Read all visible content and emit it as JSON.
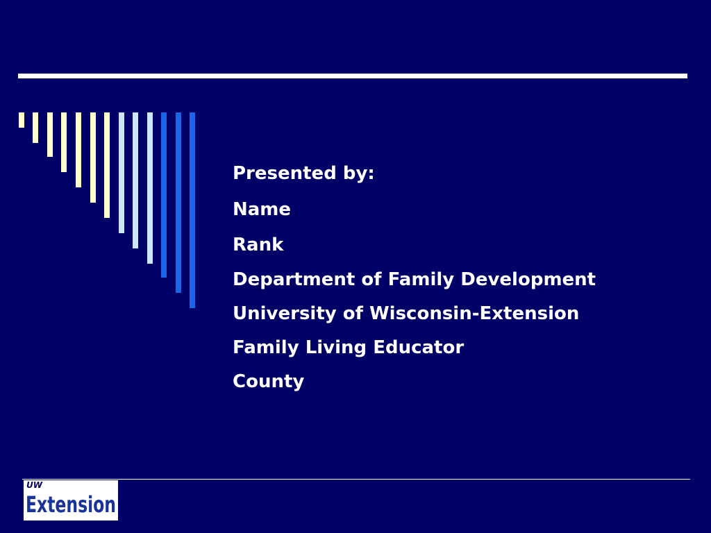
{
  "slide": {
    "lines": [
      "Presented by:",
      "Name",
      "Rank",
      "Department of Family Development",
      "University of Wisconsin-Extension",
      "Family Living Educator",
      "County"
    ],
    "logo": {
      "top": "UW",
      "main": "Extension"
    }
  }
}
